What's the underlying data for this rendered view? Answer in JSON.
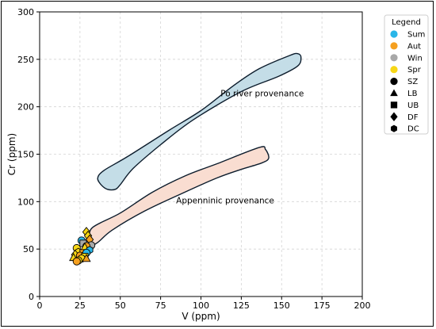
{
  "chart_data": {
    "type": "scatter",
    "xlabel": "V (ppm)",
    "ylabel": "Cr (ppm)",
    "xlim": [
      0,
      200
    ],
    "ylim": [
      0,
      300
    ],
    "xticks": [
      0,
      25,
      50,
      75,
      100,
      125,
      150,
      175,
      200
    ],
    "yticks": [
      0,
      50,
      100,
      150,
      200,
      250,
      300
    ],
    "grid": true,
    "legend_position": "top-right",
    "legend": {
      "title": "Legend",
      "seasons": [
        {
          "label": "Sum",
          "color": "#29b6e8"
        },
        {
          "label": "Aut",
          "color": "#f5a01f"
        },
        {
          "label": "Win",
          "color": "#a8a8a8"
        },
        {
          "label": "Spr",
          "color": "#f7d716"
        }
      ],
      "sites": [
        {
          "label": "SZ",
          "marker": "circle"
        },
        {
          "label": "LB",
          "marker": "triangle"
        },
        {
          "label": "UB",
          "marker": "square"
        },
        {
          "label": "DF",
          "marker": "diamond"
        },
        {
          "label": "DC",
          "marker": "hexagon"
        }
      ]
    },
    "regions": [
      {
        "label": "Po river provenance",
        "fill": "#c4dde7",
        "label_at": [
          138,
          211
        ],
        "outline": [
          [
            40,
            133
          ],
          [
            55,
            148
          ],
          [
            80,
            175
          ],
          [
            100,
            196
          ],
          [
            120,
            222
          ],
          [
            136,
            240
          ],
          [
            155,
            254
          ],
          [
            160,
            256
          ],
          [
            162,
            252
          ],
          [
            160,
            243
          ],
          [
            148,
            232
          ],
          [
            125,
            216
          ],
          [
            95,
            186
          ],
          [
            75,
            160
          ],
          [
            58,
            135
          ],
          [
            50,
            118
          ],
          [
            47,
            113
          ],
          [
            42,
            113
          ],
          [
            38,
            118
          ],
          [
            36,
            125
          ]
        ]
      },
      {
        "label": "Appenninic provenance",
        "fill": "#f9ddd1",
        "label_at": [
          115,
          98
        ],
        "outline": [
          [
            30,
            60
          ],
          [
            33,
            73
          ],
          [
            50,
            88
          ],
          [
            70,
            110
          ],
          [
            90,
            127
          ],
          [
            110,
            140
          ],
          [
            136,
            157
          ],
          [
            140,
            155
          ],
          [
            142,
            146
          ],
          [
            138,
            141
          ],
          [
            125,
            134
          ],
          [
            110,
            125
          ],
          [
            90,
            110
          ],
          [
            65,
            90
          ],
          [
            45,
            70
          ],
          [
            36,
            57
          ],
          [
            30,
            52
          ],
          [
            27,
            54
          ]
        ]
      }
    ],
    "points": [
      {
        "x": 29,
        "y": 68,
        "season": "Spr",
        "site": "DF"
      },
      {
        "x": 30,
        "y": 64,
        "season": "Spr",
        "site": "DF"
      },
      {
        "x": 31,
        "y": 60,
        "season": "Aut",
        "site": "DF"
      },
      {
        "x": 26,
        "y": 59,
        "season": "Sum",
        "site": "SZ"
      },
      {
        "x": 27,
        "y": 56,
        "season": "Win",
        "site": "UB"
      },
      {
        "x": 32,
        "y": 54,
        "season": "Win",
        "site": "SZ"
      },
      {
        "x": 29,
        "y": 53,
        "season": "Aut",
        "site": "SZ"
      },
      {
        "x": 23,
        "y": 51,
        "season": "Spr",
        "site": "SZ"
      },
      {
        "x": 28,
        "y": 52,
        "season": "Spr",
        "site": "LB"
      },
      {
        "x": 31,
        "y": 49,
        "season": "Sum",
        "site": "DC"
      },
      {
        "x": 24,
        "y": 47,
        "season": "Spr",
        "site": "DC"
      },
      {
        "x": 27,
        "y": 46,
        "season": "Aut",
        "site": "UB"
      },
      {
        "x": 29,
        "y": 46,
        "season": "Sum",
        "site": "SZ"
      },
      {
        "x": 22,
        "y": 44,
        "season": "Spr",
        "site": "DF"
      },
      {
        "x": 25,
        "y": 43,
        "season": "Aut",
        "site": "SZ"
      },
      {
        "x": 28,
        "y": 42,
        "season": "Spr",
        "site": "UB"
      },
      {
        "x": 21,
        "y": 41,
        "season": "Spr",
        "site": "LB"
      },
      {
        "x": 26,
        "y": 40,
        "season": "Spr",
        "site": "SZ"
      },
      {
        "x": 29,
        "y": 40,
        "season": "Aut",
        "site": "LB"
      },
      {
        "x": 24,
        "y": 38,
        "season": "Spr",
        "site": "SZ"
      },
      {
        "x": 23,
        "y": 37,
        "season": "Aut",
        "site": "SZ"
      }
    ]
  }
}
